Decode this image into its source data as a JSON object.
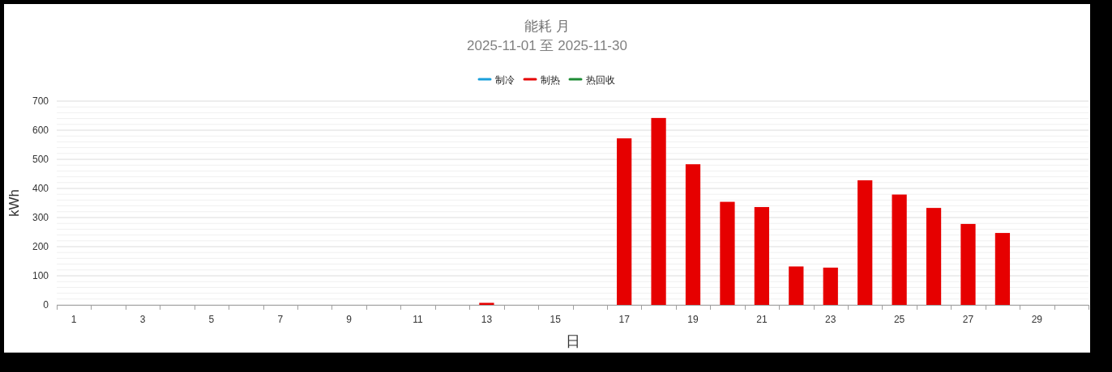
{
  "chart_data": {
    "type": "bar",
    "title": "能耗 月",
    "subtitle": "2025-11-01 至 2025-11-30",
    "xlabel": "日",
    "ylabel": "kWh",
    "categories": [
      "1",
      null,
      "3",
      null,
      "5",
      null,
      "7",
      null,
      "9",
      null,
      "11",
      null,
      "13",
      null,
      "15",
      null,
      "17",
      null,
      "19",
      null,
      "21",
      null,
      "23",
      null,
      "25",
      null,
      "27",
      null,
      "29",
      null
    ],
    "series": [
      {
        "name": "制冷",
        "color": "#1a9fdb",
        "values": [
          null,
          null,
          null,
          null,
          null,
          null,
          null,
          null,
          null,
          null,
          null,
          null,
          null,
          null,
          null,
          null,
          null,
          null,
          null,
          null,
          null,
          null,
          null,
          null,
          null,
          null,
          null,
          null,
          null,
          null
        ]
      },
      {
        "name": "制热",
        "color": "#e60000",
        "values": [
          null,
          null,
          null,
          null,
          null,
          null,
          null,
          null,
          null,
          null,
          null,
          null,
          7,
          null,
          null,
          null,
          572,
          642,
          483,
          354,
          336,
          132,
          128,
          428,
          379,
          333,
          278,
          247,
          null,
          null
        ]
      },
      {
        "name": "热回收",
        "color": "#1e8c35",
        "values": [
          null,
          null,
          null,
          null,
          null,
          null,
          null,
          null,
          null,
          null,
          null,
          null,
          null,
          null,
          null,
          null,
          null,
          null,
          null,
          null,
          null,
          null,
          null,
          null,
          null,
          null,
          null,
          null,
          null,
          null
        ]
      }
    ],
    "ylim": [
      0,
      700
    ],
    "yticks": [
      0,
      {
        "value": 20,
        "label": null
      },
      {
        "value": 40,
        "label": null
      },
      {
        "value": 60,
        "label": null
      },
      {
        "value": 80,
        "label": null
      },
      100,
      {
        "value": 120,
        "label": null
      },
      {
        "value": 140,
        "label": null
      },
      {
        "value": 160,
        "label": null
      },
      {
        "value": 180,
        "label": null
      },
      200,
      {
        "value": 220,
        "label": null
      },
      {
        "value": 240,
        "label": null
      },
      {
        "value": 260,
        "label": null
      },
      {
        "value": 280,
        "label": null
      },
      300,
      {
        "value": 320,
        "label": null
      },
      {
        "value": 340,
        "label": null
      },
      {
        "value": 360,
        "label": null
      },
      {
        "value": 380,
        "label": null
      },
      400,
      {
        "value": 420,
        "label": null
      },
      {
        "value": 440,
        "label": null
      },
      {
        "value": 460,
        "label": null
      },
      {
        "value": 480,
        "label": null
      },
      500,
      {
        "value": 520,
        "label": null
      },
      {
        "value": 540,
        "label": null
      },
      {
        "value": 560,
        "label": null
      },
      {
        "value": 580,
        "label": null
      },
      600,
      {
        "value": 620,
        "label": null
      },
      {
        "value": 640,
        "label": null
      },
      {
        "value": 660,
        "label": null
      },
      {
        "value": 680,
        "label": null
      },
      700
    ],
    "grid": "y",
    "legend": "top"
  }
}
